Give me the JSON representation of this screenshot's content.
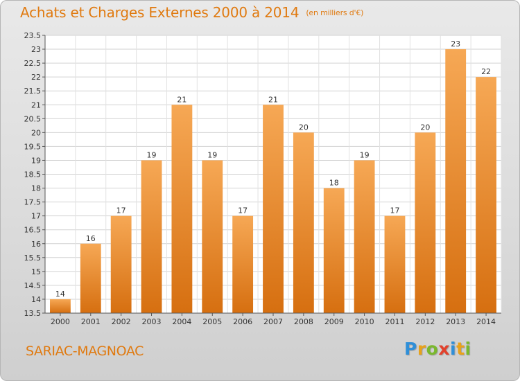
{
  "header": {
    "title": "Achats et Charges Externes 2000 à 2014",
    "subtitle": "(en milliers d'€)"
  },
  "footer": {
    "commune": "SARIAC-MAGNOAC",
    "logo_letters": [
      "P",
      "r",
      "o",
      "x",
      "i",
      "t",
      "i"
    ],
    "logo_colors": [
      "#2f8fd8",
      "#e8a21b",
      "#7ab82e",
      "#e2412c",
      "#2f8fd8",
      "#e8a21b",
      "#7ab82e"
    ]
  },
  "colors": {
    "bar_top": "#f6a855",
    "bar_bottom": "#d66f10",
    "title": "#e07a10"
  },
  "chart_data": {
    "type": "bar",
    "categories": [
      "2000",
      "2001",
      "2002",
      "2003",
      "2004",
      "2005",
      "2006",
      "2007",
      "2008",
      "2009",
      "2010",
      "2011",
      "2012",
      "2013",
      "2014"
    ],
    "values": [
      14,
      16,
      17,
      19,
      21,
      19,
      17,
      21,
      20,
      18,
      19,
      17,
      20,
      23,
      22
    ],
    "data_labels": [
      "14",
      "16",
      "17",
      "19",
      "21",
      "19",
      "17",
      "21",
      "20",
      "18",
      "19",
      "17",
      "20",
      "23",
      "22"
    ],
    "ylim": [
      13.5,
      23.5
    ],
    "yticks": [
      "13.5",
      "14",
      "14.5",
      "15",
      "15.5",
      "16",
      "16.5",
      "17",
      "17.5",
      "18",
      "18.5",
      "19",
      "19.5",
      "20",
      "20.5",
      "21",
      "21.5",
      "22",
      "22.5",
      "23",
      "23.5"
    ],
    "grid": true
  }
}
